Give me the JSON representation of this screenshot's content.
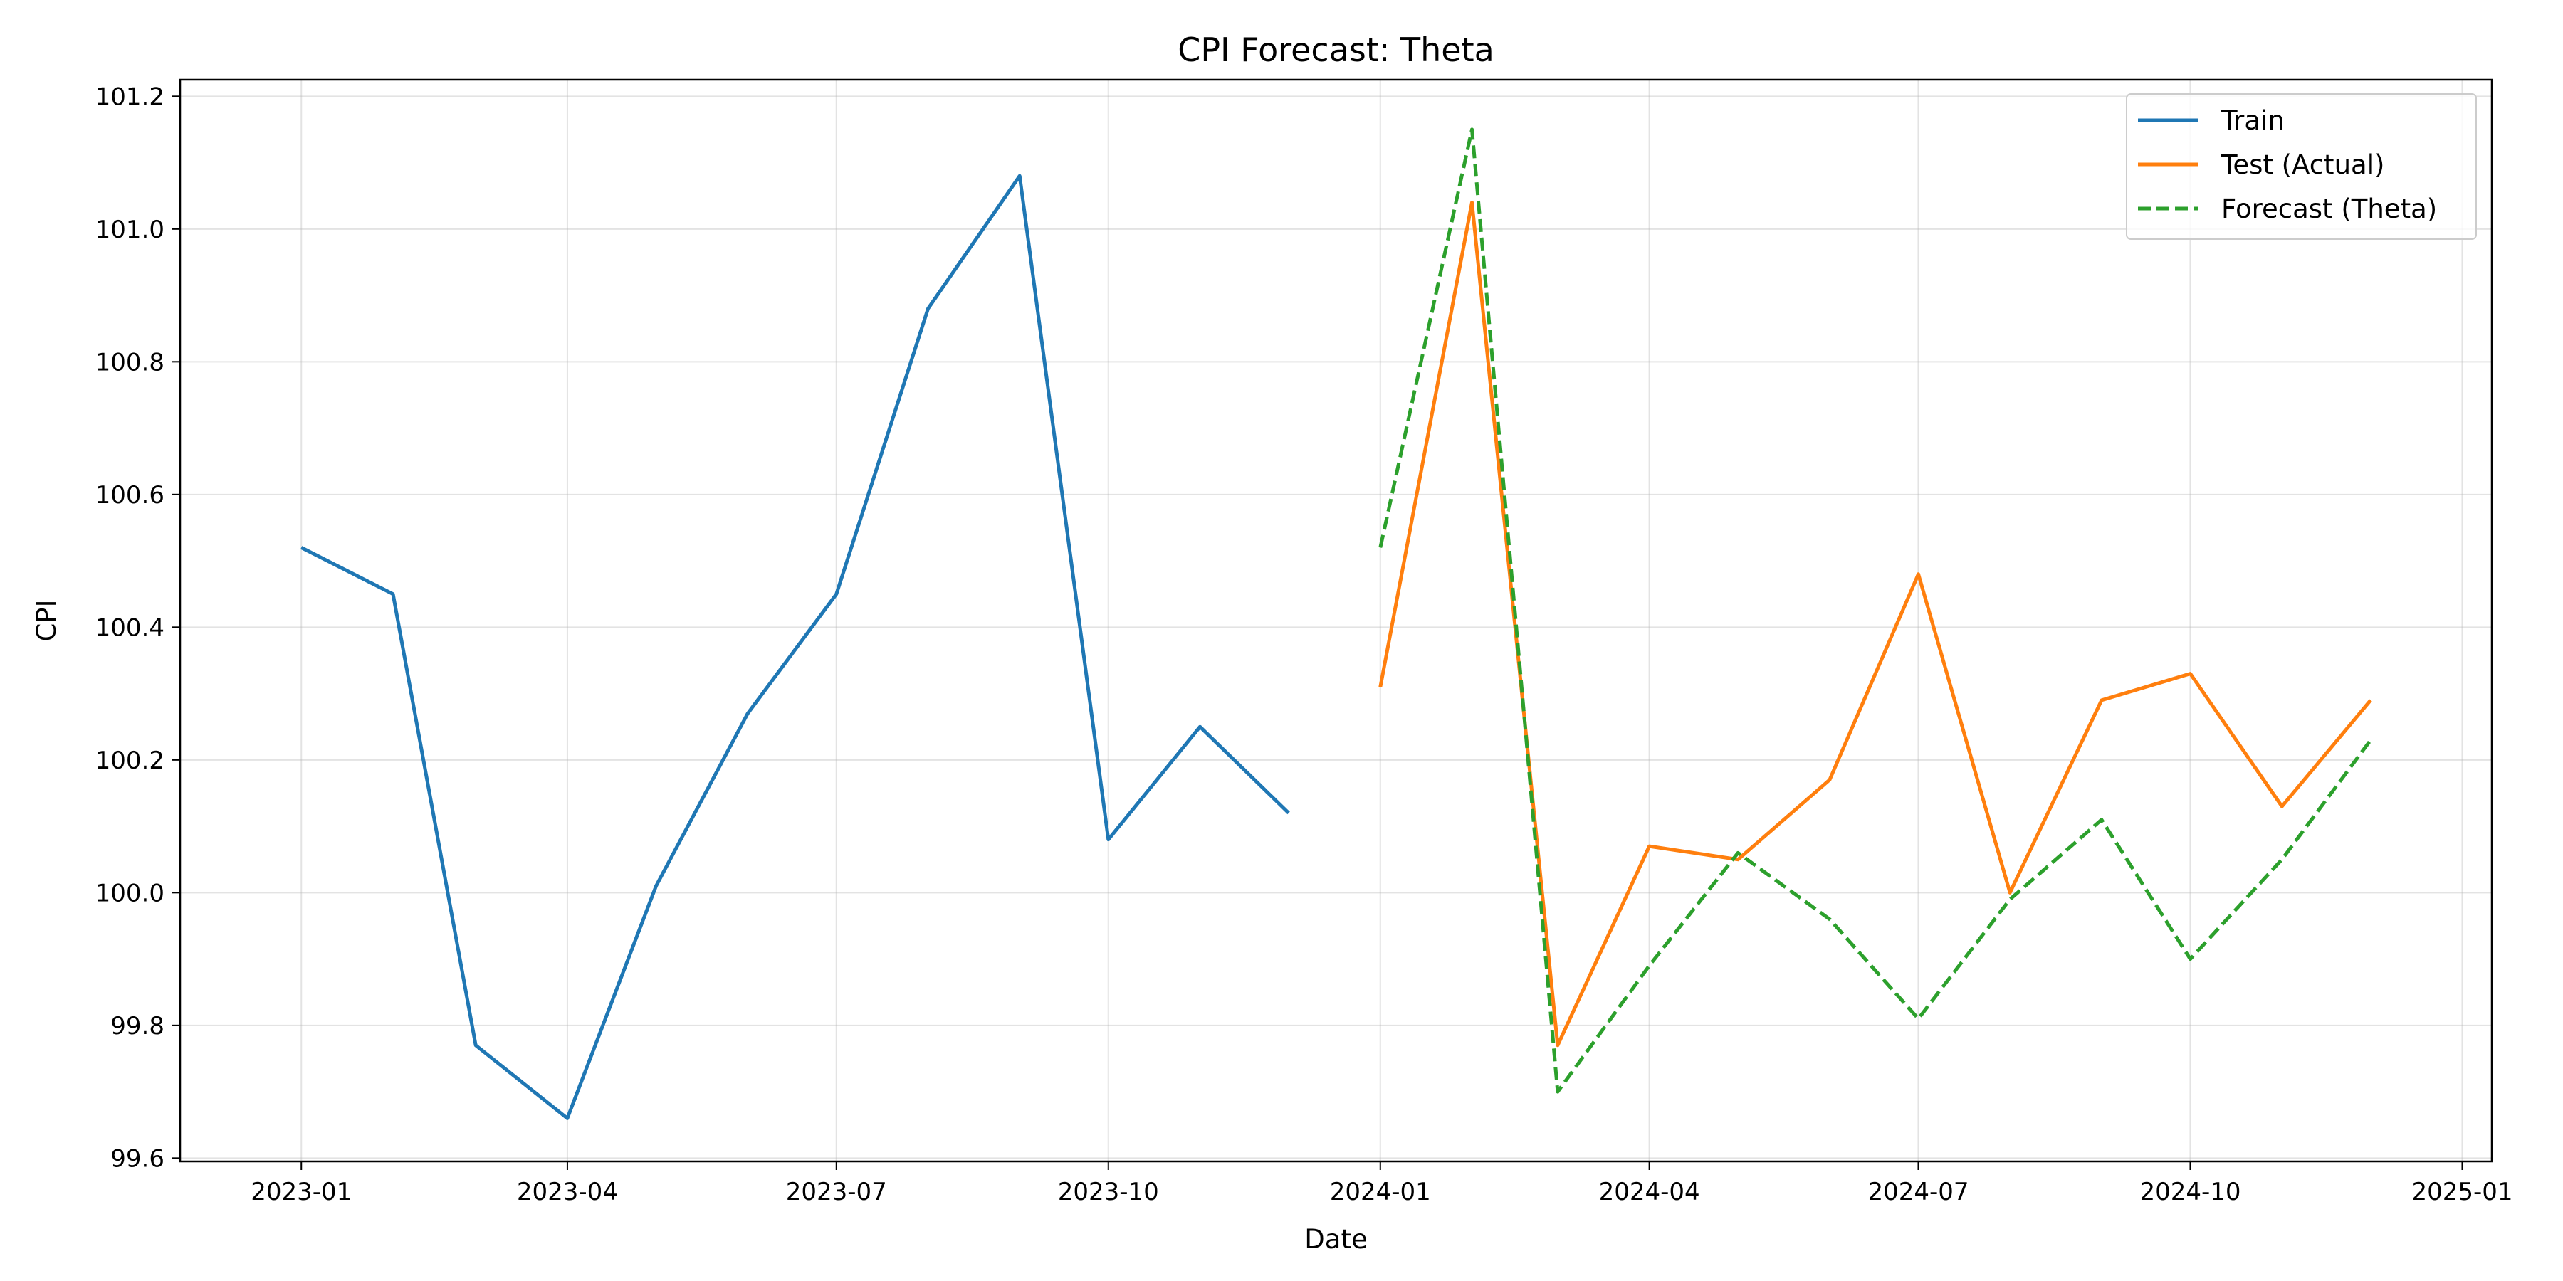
{
  "chart_data": {
    "type": "line",
    "title": "CPI Forecast: Theta",
    "xlabel": "Date",
    "ylabel": "CPI",
    "x_type": "date",
    "xlim": [
      "2022-11-21",
      "2025-01-11"
    ],
    "ylim": [
      99.595,
      101.225
    ],
    "x_ticks": [
      "2023-01",
      "2023-04",
      "2023-07",
      "2023-10",
      "2024-01",
      "2024-04",
      "2024-07",
      "2024-10",
      "2025-01"
    ],
    "y_ticks": [
      "99.6",
      "99.8",
      "100.0",
      "100.2",
      "100.4",
      "100.6",
      "100.8",
      "101.0",
      "101.2"
    ],
    "grid": true,
    "legend_position": "top-right",
    "series": [
      {
        "name": "Train",
        "color": "#1f77b4",
        "style": "solid",
        "x": [
          "2023-01-01",
          "2023-02-01",
          "2023-03-01",
          "2023-04-01",
          "2023-05-01",
          "2023-06-01",
          "2023-07-01",
          "2023-08-01",
          "2023-09-01",
          "2023-10-01",
          "2023-11-01",
          "2023-12-01"
        ],
        "y": [
          100.52,
          100.45,
          99.77,
          99.66,
          100.01,
          100.27,
          100.45,
          100.88,
          101.08,
          100.08,
          100.25,
          100.12
        ]
      },
      {
        "name": "Test (Actual)",
        "color": "#ff7f0e",
        "style": "solid",
        "x": [
          "2024-01-01",
          "2024-02-01",
          "2024-03-01",
          "2024-04-01",
          "2024-05-01",
          "2024-06-01",
          "2024-07-01",
          "2024-08-01",
          "2024-09-01",
          "2024-10-01",
          "2024-11-01",
          "2024-12-01"
        ],
        "y": [
          100.31,
          101.04,
          99.77,
          100.07,
          100.05,
          100.17,
          100.48,
          100.0,
          100.29,
          100.33,
          100.13,
          100.29
        ]
      },
      {
        "name": "Forecast (Theta)",
        "color": "#2ca02c",
        "style": "dashed",
        "x": [
          "2024-01-01",
          "2024-02-01",
          "2024-03-01",
          "2024-04-01",
          "2024-05-01",
          "2024-06-01",
          "2024-07-01",
          "2024-08-01",
          "2024-09-01",
          "2024-10-01",
          "2024-11-01",
          "2024-12-01"
        ],
        "y": [
          100.52,
          101.15,
          99.7,
          99.89,
          100.06,
          99.96,
          99.81,
          99.99,
          100.11,
          99.9,
          100.05,
          100.23
        ]
      }
    ]
  }
}
